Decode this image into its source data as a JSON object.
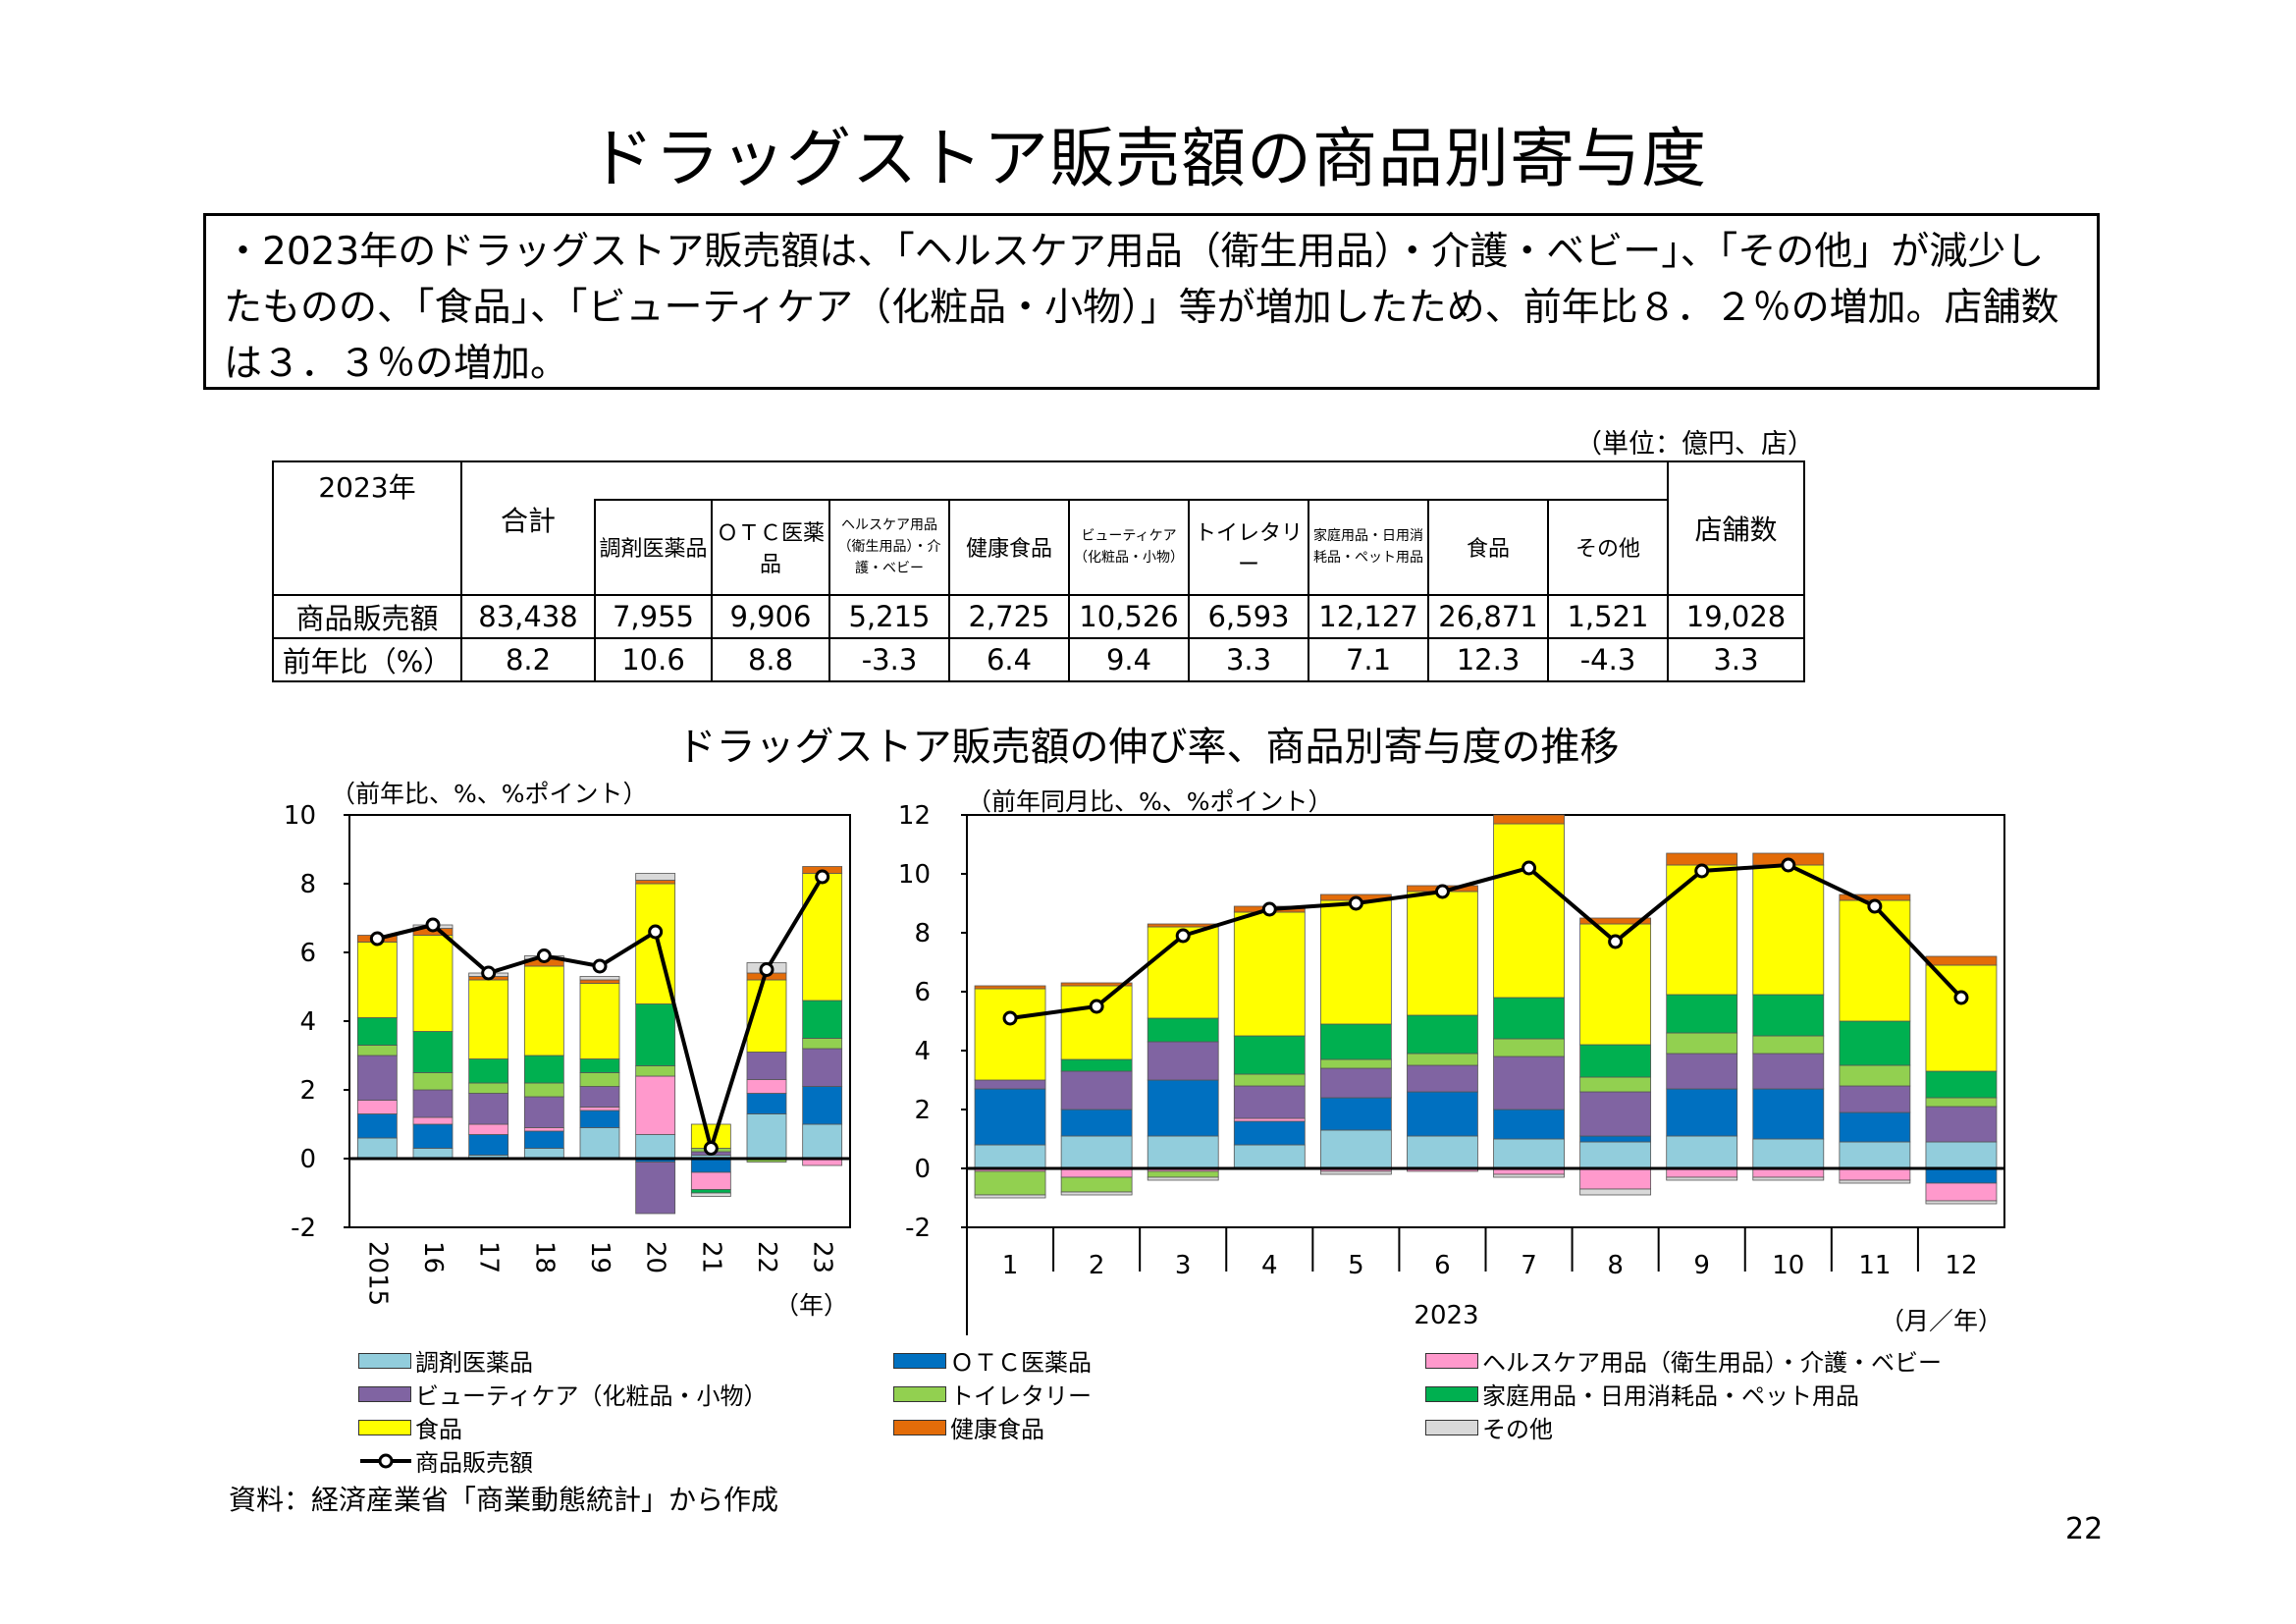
{
  "page": {
    "title": "ドラッグストア販売額の商品別寄与度",
    "summary": "・2023年のドラッグストア販売額は、「ヘルスケア用品（衛生用品）・介護・ベビー」、「その他」が減少したものの、「食品」、「ビューティケア（化粧品・小物）」等が増加したため、前年比８．２％の増加。店舗数は３．３％の増加。",
    "unit_note": "（単位：億円、店）",
    "source": "資料：経済産業省「商業動態統計」から作成",
    "page_number": "22"
  },
  "table": {
    "corner_label": "2023年",
    "headers": [
      "合計",
      "調剤医薬品",
      "ＯＴＣ医薬品",
      "ヘルスケア用品（衛生用品）・介護・ベビー",
      "健康食品",
      "ビューティケア（化粧品・小物）",
      "トイレタリー",
      "家庭用品・日用消耗品・ペット用品",
      "食品",
      "その他",
      "店舗数"
    ],
    "rows": [
      {
        "label": "商品販売額",
        "values": [
          "83,438",
          "7,955",
          "9,906",
          "5,215",
          "2,725",
          "10,526",
          "6,593",
          "12,127",
          "26,871",
          "1,521",
          "19,028"
        ]
      },
      {
        "label": "前年比（%）",
        "values": [
          "8.2",
          "10.6",
          "8.8",
          "-3.3",
          "6.4",
          "9.4",
          "3.3",
          "7.1",
          "12.3",
          "-4.3",
          "3.3"
        ]
      }
    ]
  },
  "chart_section_title": "ドラッグストア販売額の伸び率、商品別寄与度の推移",
  "chart_data": [
    {
      "type": "bar",
      "stacked": true,
      "unit_label": "（前年比、%、%ポイント）",
      "x_unit": "（年）",
      "categories": [
        "2015",
        "16",
        "17",
        "18",
        "19",
        "20",
        "21",
        "22",
        "23"
      ],
      "ylim": [
        -2,
        10
      ],
      "yticks": [
        -2,
        0,
        2,
        4,
        6,
        8,
        10
      ],
      "series": [
        {
          "name": "調剤医薬品",
          "color": "#92CDDC",
          "values": [
            0.6,
            0.3,
            0.1,
            0.3,
            0.9,
            0.7,
            0.1,
            1.3,
            1.0
          ]
        },
        {
          "name": "ＯＴＣ医薬品",
          "color": "#0070C0",
          "values": [
            0.7,
            0.7,
            0.6,
            0.5,
            0.5,
            -0.1,
            -0.4,
            0.6,
            1.1
          ]
        },
        {
          "name": "ヘルスケア用品（衛生用品）・介護・ベビー",
          "color": "#FF99CC",
          "values": [
            0.4,
            0.2,
            0.3,
            0.1,
            0.1,
            1.7,
            -0.5,
            0.4,
            -0.2
          ]
        },
        {
          "name": "ビューティケア（化粧品・小物）",
          "color": "#8064A2",
          "values": [
            1.3,
            0.8,
            0.9,
            0.9,
            0.6,
            -1.5,
            0.1,
            0.8,
            1.1
          ]
        },
        {
          "name": "トイレタリー",
          "color": "#92D050",
          "values": [
            0.3,
            0.5,
            0.3,
            0.4,
            0.4,
            0.3,
            0.1,
            -0.1,
            0.3
          ]
        },
        {
          "name": "家庭用品・日用消耗品・ペット用品",
          "color": "#00B050",
          "values": [
            0.8,
            1.2,
            0.7,
            0.8,
            0.4,
            1.8,
            -0.1,
            0.0,
            1.1
          ]
        },
        {
          "name": "食品",
          "color": "#FFFF00",
          "values": [
            2.2,
            2.8,
            2.3,
            2.6,
            2.2,
            3.5,
            0.7,
            2.1,
            3.7
          ]
        },
        {
          "name": "健康食品",
          "color": "#E36C09",
          "values": [
            0.2,
            0.2,
            0.1,
            0.2,
            0.1,
            0.1,
            0.0,
            0.2,
            0.2
          ]
        },
        {
          "name": "その他",
          "color": "#D9D9D9",
          "values": [
            0.0,
            0.1,
            0.1,
            0.1,
            0.1,
            0.2,
            -0.1,
            0.3,
            0.0
          ]
        }
      ],
      "line": {
        "name": "商品販売額",
        "values": [
          6.4,
          6.8,
          5.4,
          5.9,
          5.6,
          6.6,
          0.3,
          5.5,
          8.2
        ]
      }
    },
    {
      "type": "bar",
      "stacked": true,
      "unit_label": "（前年同月比、%、%ポイント）",
      "x_unit": "（月／年）",
      "year_label": "2023",
      "categories": [
        "1",
        "2",
        "3",
        "4",
        "5",
        "6",
        "7",
        "8",
        "9",
        "10",
        "11",
        "12"
      ],
      "ylim": [
        -2,
        12
      ],
      "yticks": [
        -2,
        0,
        2,
        4,
        6,
        8,
        10,
        12
      ],
      "series": [
        {
          "name": "調剤医薬品",
          "color": "#92CDDC",
          "values": [
            0.8,
            1.1,
            1.1,
            0.8,
            1.3,
            1.1,
            1.0,
            0.9,
            1.1,
            1.0,
            0.9,
            0.9
          ]
        },
        {
          "name": "ＯＴＣ医薬品",
          "color": "#0070C0",
          "values": [
            1.9,
            0.9,
            1.9,
            0.8,
            1.1,
            1.5,
            1.0,
            0.2,
            1.6,
            1.7,
            1.0,
            -0.5
          ]
        },
        {
          "name": "ヘルスケア用品（衛生用品）・介護・ベビー",
          "color": "#FF99CC",
          "values": [
            -0.1,
            -0.3,
            -0.1,
            0.1,
            -0.1,
            -0.1,
            -0.2,
            -0.7,
            -0.3,
            -0.3,
            -0.4,
            -0.6
          ]
        },
        {
          "name": "ビューティケア（化粧品・小物）",
          "color": "#8064A2",
          "values": [
            0.3,
            1.3,
            1.3,
            1.1,
            1.0,
            0.9,
            1.8,
            1.5,
            1.2,
            1.2,
            0.9,
            1.2
          ]
        },
        {
          "name": "トイレタリー",
          "color": "#92D050",
          "values": [
            -0.8,
            -0.5,
            -0.2,
            0.4,
            0.3,
            0.4,
            0.6,
            0.5,
            0.7,
            0.6,
            0.7,
            0.3
          ]
        },
        {
          "name": "家庭用品・日用消耗品・ペット用品",
          "color": "#00B050",
          "values": [
            0.0,
            0.4,
            0.8,
            1.3,
            1.2,
            1.3,
            1.4,
            1.1,
            1.3,
            1.4,
            1.5,
            0.9
          ]
        },
        {
          "name": "食品",
          "color": "#FFFF00",
          "values": [
            3.1,
            2.5,
            3.1,
            4.2,
            4.2,
            4.2,
            5.9,
            4.1,
            4.4,
            4.4,
            4.1,
            3.6
          ]
        },
        {
          "name": "健康食品",
          "color": "#E36C09",
          "values": [
            0.1,
            0.1,
            0.1,
            0.2,
            0.2,
            0.2,
            0.3,
            0.2,
            0.4,
            0.4,
            0.2,
            0.3
          ]
        },
        {
          "name": "その他",
          "color": "#D9D9D9",
          "values": [
            -0.1,
            -0.1,
            -0.1,
            0.0,
            -0.1,
            0.0,
            -0.1,
            -0.2,
            -0.1,
            -0.1,
            -0.1,
            -0.1
          ]
        }
      ],
      "line": {
        "name": "商品販売額",
        "values": [
          5.1,
          5.5,
          7.9,
          8.8,
          9.0,
          9.4,
          10.2,
          7.7,
          10.1,
          10.3,
          8.9,
          5.8
        ]
      }
    }
  ],
  "legend": [
    {
      "label": "調剤医薬品",
      "color": "#92CDDC"
    },
    {
      "label": "ＯＴＣ医薬品",
      "color": "#0070C0"
    },
    {
      "label": "ヘルスケア用品（衛生用品）・介護・ベビー",
      "color": "#FF99CC"
    },
    {
      "label": "ビューティケア（化粧品・小物）",
      "color": "#8064A2"
    },
    {
      "label": "トイレタリー",
      "color": "#92D050"
    },
    {
      "label": "家庭用品・日用消耗品・ペット用品",
      "color": "#00B050"
    },
    {
      "label": "食品",
      "color": "#FFFF00"
    },
    {
      "label": "健康食品",
      "color": "#E36C09"
    },
    {
      "label": "その他",
      "color": "#D9D9D9"
    }
  ],
  "legend_line_label": "商品販売額"
}
